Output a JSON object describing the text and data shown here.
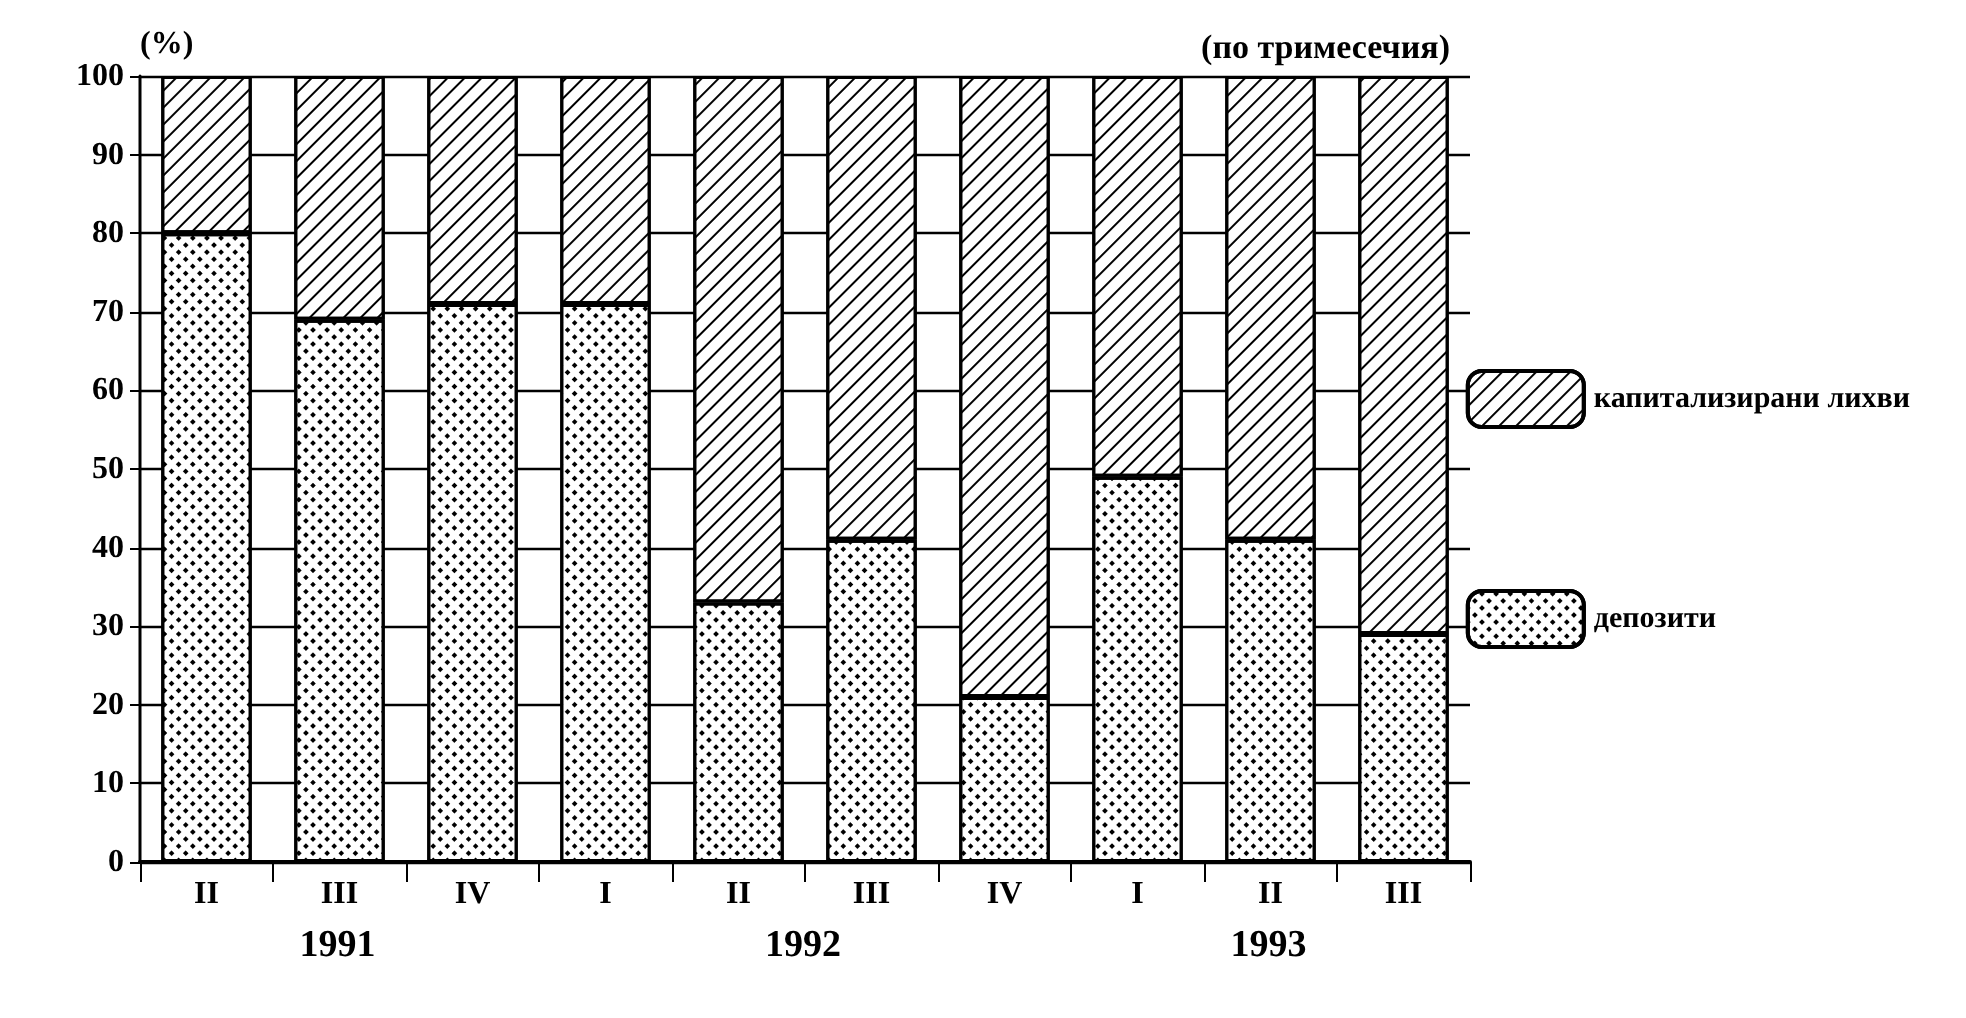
{
  "chart_data": {
    "type": "bar",
    "title": "(по тримесечия)",
    "ylabel": "(%)",
    "stacked": true,
    "categories": [
      "II",
      "III",
      "IV",
      "I",
      "II",
      "III",
      "IV",
      "I",
      "II",
      "III"
    ],
    "series": [
      {
        "name": "депозити",
        "color": "#ffffff",
        "values": [
          80,
          69,
          71,
          71,
          33,
          41,
          21,
          49,
          41,
          29
        ]
      },
      {
        "name": "капитализирани лихви",
        "color": "#ffffff",
        "values": [
          20,
          31,
          29,
          29,
          67,
          59,
          79,
          51,
          59,
          71
        ]
      }
    ],
    "ylim": [
      0,
      100
    ],
    "yticks": [
      0,
      10,
      20,
      30,
      40,
      50,
      60,
      70,
      80,
      90,
      100
    ],
    "grid": "y",
    "legend": "right",
    "annotations": [
      "1991",
      "1992",
      "1993"
    ]
  }
}
